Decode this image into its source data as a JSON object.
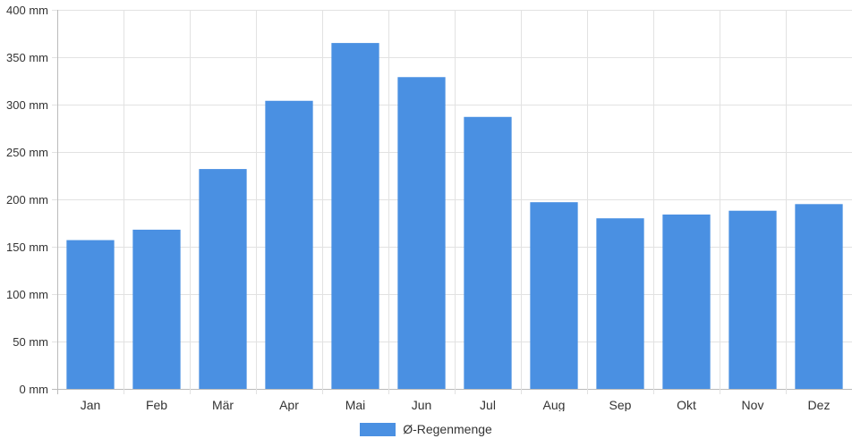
{
  "chart_data": {
    "type": "bar",
    "categories": [
      "Jan",
      "Feb",
      "Mär",
      "Apr",
      "Mai",
      "Jun",
      "Jul",
      "Aug",
      "Sep",
      "Okt",
      "Nov",
      "Dez"
    ],
    "series": [
      {
        "name": "Ø-Regenmenge",
        "values": [
          157,
          168,
          232,
          304,
          365,
          329,
          287,
          197,
          180,
          184,
          188,
          195
        ],
        "color": "#4a90e2"
      }
    ],
    "y_ticks": [
      "0 mm",
      "50 mm",
      "100 mm",
      "150 mm",
      "200 mm",
      "250 mm",
      "300 mm",
      "350 mm",
      "400 mm"
    ],
    "ylim": [
      0,
      400
    ],
    "y_unit": "mm",
    "grid": true,
    "legend_position": "bottom"
  }
}
